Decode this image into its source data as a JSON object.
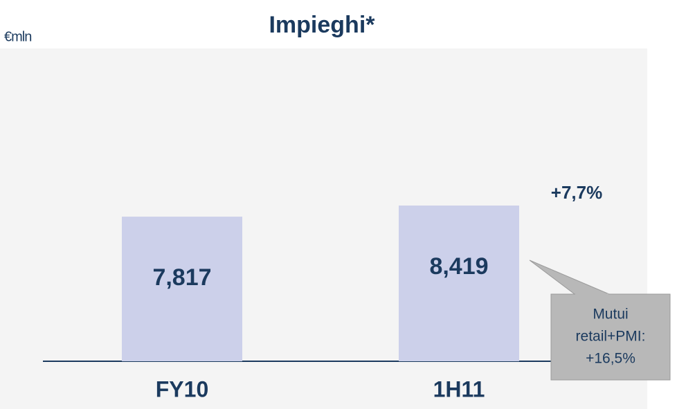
{
  "chart_data": {
    "type": "bar",
    "title": "Impieghi*",
    "unit_label": "€mln",
    "categories": [
      "FY10",
      "1H11"
    ],
    "values": [
      7817,
      8419
    ],
    "value_labels": [
      "7,817",
      "8,419"
    ],
    "color": "#ccd0ea",
    "annotation": "+7,7%",
    "callout": [
      "Mutui",
      "retail+PMI:",
      "+16,5%"
    ]
  }
}
